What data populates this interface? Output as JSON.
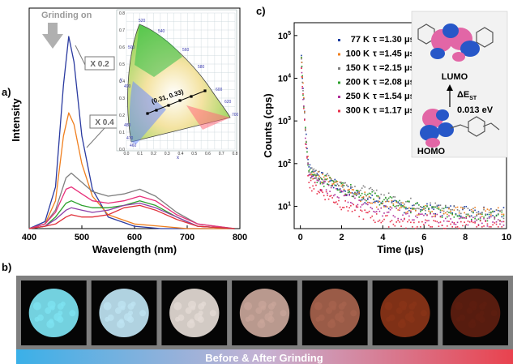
{
  "panel_a": {
    "label": "a)",
    "annotation": "Grinding on",
    "scale_labels": [
      "X 0.2",
      "X 0.4"
    ],
    "inset": {
      "cie_label": "(0.31, 0.33)",
      "x_ticks": [
        "0.0",
        "0.1",
        "0.2",
        "0.3",
        "0.4",
        "0.5",
        "0.6",
        "0.7",
        "0.8"
      ],
      "y_ticks": [
        "0.0",
        "0.1",
        "0.2",
        "0.3",
        "0.4",
        "0.5",
        "0.6",
        "0.7",
        "0.8"
      ],
      "xlabel": "x",
      "ylabel": "y",
      "locus_labels": [
        "520",
        "540",
        "560",
        "580",
        "600",
        "620",
        "700",
        "500",
        "490",
        "480",
        "470",
        "460"
      ]
    }
  },
  "panel_b": {
    "label": "b)",
    "banner": "Before & After Grinding",
    "samples": [
      {
        "color": "#7de3f2"
      },
      {
        "color": "#bfe4f3"
      },
      {
        "color": "#e4dbd5"
      },
      {
        "color": "#c9a69a"
      },
      {
        "color": "#a7634d"
      },
      {
        "color": "#8a3418"
      },
      {
        "color": "#5e1e10"
      }
    ]
  },
  "panel_c": {
    "label": "c)",
    "legend": [
      {
        "temp": "77 K",
        "tau": "τ =1.30 μs",
        "color": "#1f3fa0"
      },
      {
        "temp": "100 K",
        "tau": "τ =1.45 μs",
        "color": "#f07f1e"
      },
      {
        "temp": "150 K",
        "tau": "τ =2.15 μs",
        "color": "#7f7f7f"
      },
      {
        "temp": "200 K",
        "tau": "τ =2.08 μs",
        "color": "#2ca02c"
      },
      {
        "temp": "250 K",
        "tau": "τ =1.54 μs",
        "color": "#b0309a"
      },
      {
        "temp": "300 K",
        "tau": "τ =1.17 μs",
        "color": "#e8304a"
      }
    ],
    "orbital_top": "LUMO",
    "orbital_bottom": "HOMO",
    "delta_label": "ΔE",
    "delta_sub": "ST",
    "delta_value": "0.013 eV"
  },
  "chart_data": [
    {
      "type": "line",
      "xlabel": "Wavelength (nm)",
      "ylabel": "Intensity",
      "xlim": [
        400,
        800
      ],
      "x_ticks": [
        400,
        500,
        600,
        700,
        800
      ],
      "y_ticks_shown": false,
      "series": [
        {
          "color": "#2a3aa0",
          "x": [
            400,
            430,
            450,
            465,
            475,
            485,
            500,
            520,
            550,
            600,
            650,
            700,
            750,
            790
          ],
          "y": [
            0.0,
            0.03,
            0.18,
            0.62,
            0.83,
            0.72,
            0.4,
            0.17,
            0.05,
            0.01,
            0.0,
            0.0,
            0.0,
            0.0
          ]
        },
        {
          "color": "#f07f1e",
          "x": [
            400,
            430,
            450,
            465,
            475,
            485,
            500,
            520,
            550,
            600,
            650,
            700,
            750,
            790
          ],
          "y": [
            0.0,
            0.02,
            0.12,
            0.4,
            0.5,
            0.45,
            0.28,
            0.14,
            0.06,
            0.02,
            0.01,
            0.0,
            0.0,
            0.0
          ]
        },
        {
          "color": "#7f7f7f",
          "x": [
            400,
            430,
            450,
            470,
            480,
            500,
            520,
            550,
            580,
            610,
            640,
            680,
            720,
            790
          ],
          "y": [
            0.0,
            0.02,
            0.08,
            0.22,
            0.24,
            0.2,
            0.16,
            0.14,
            0.15,
            0.17,
            0.14,
            0.07,
            0.02,
            0.0
          ]
        },
        {
          "color": "#e8307a",
          "x": [
            400,
            430,
            450,
            470,
            480,
            500,
            520,
            550,
            580,
            610,
            640,
            680,
            720,
            790
          ],
          "y": [
            0.0,
            0.02,
            0.07,
            0.17,
            0.18,
            0.15,
            0.12,
            0.11,
            0.12,
            0.14,
            0.12,
            0.06,
            0.02,
            0.0
          ]
        },
        {
          "color": "#2ca02c",
          "x": [
            400,
            430,
            450,
            470,
            480,
            500,
            520,
            550,
            580,
            610,
            640,
            680,
            720,
            790
          ],
          "y": [
            0.0,
            0.01,
            0.05,
            0.11,
            0.12,
            0.1,
            0.09,
            0.09,
            0.1,
            0.12,
            0.1,
            0.05,
            0.01,
            0.0
          ]
        },
        {
          "color": "#8c3fa8",
          "x": [
            400,
            430,
            450,
            470,
            480,
            500,
            520,
            550,
            580,
            610,
            640,
            680,
            720,
            790
          ],
          "y": [
            0.0,
            0.01,
            0.04,
            0.08,
            0.09,
            0.08,
            0.07,
            0.08,
            0.1,
            0.11,
            0.09,
            0.05,
            0.01,
            0.0
          ]
        },
        {
          "color": "#e0303a",
          "x": [
            400,
            430,
            450,
            470,
            480,
            500,
            520,
            550,
            580,
            610,
            640,
            680,
            720,
            790
          ],
          "y": [
            0.0,
            0.01,
            0.02,
            0.05,
            0.06,
            0.05,
            0.05,
            0.06,
            0.09,
            0.1,
            0.08,
            0.04,
            0.01,
            0.0
          ]
        }
      ]
    },
    {
      "type": "scatter",
      "xlabel": "Time (μs)",
      "ylabel": "Counts (cps)",
      "xlim": [
        -0.3,
        10
      ],
      "ylim": [
        3,
        200000
      ],
      "yscale": "log",
      "x_ticks": [
        0,
        2,
        4,
        6,
        8,
        10
      ],
      "y_ticks": [
        "10^1",
        "10^2",
        "10^3",
        "10^4",
        "10^5"
      ],
      "series": [
        {
          "name": "77 K",
          "tau_us": 1.3,
          "peak": 100000
        },
        {
          "name": "100 K",
          "tau_us": 1.45,
          "peak": 90000
        },
        {
          "name": "150 K",
          "tau_us": 2.15,
          "peak": 80000
        },
        {
          "name": "200 K",
          "tau_us": 2.08,
          "peak": 70000
        },
        {
          "name": "250 K",
          "tau_us": 1.54,
          "peak": 60000
        },
        {
          "name": "300 K",
          "tau_us": 1.17,
          "peak": 50000
        }
      ]
    }
  ]
}
